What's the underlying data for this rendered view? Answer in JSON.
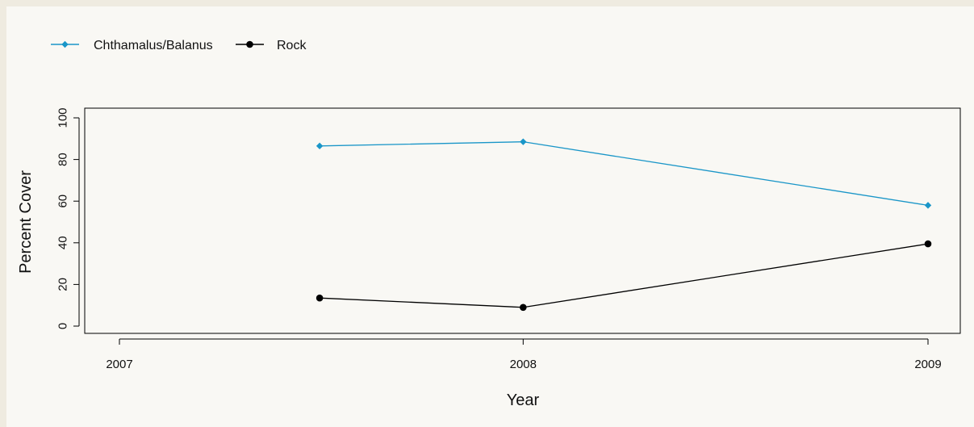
{
  "chart_data": {
    "type": "line",
    "title": "",
    "xlabel": "Year",
    "ylabel": "Percent Cover",
    "xlim": [
      "2007-01-01",
      "2009-01-01"
    ],
    "x_ticks": [
      {
        "value": "2007-01-01",
        "label": "2007"
      },
      {
        "value": "2008-01-01",
        "label": "2008"
      },
      {
        "value": "2009-01-01",
        "label": "2009"
      }
    ],
    "ylim": [
      0,
      100
    ],
    "y_ticks": [
      0,
      20,
      40,
      60,
      80,
      100
    ],
    "grid": false,
    "legend_position": "top-left",
    "series": [
      {
        "name": "Chthamalus/Balanus",
        "color": "#1a96c8",
        "marker": "diamond",
        "points": [
          {
            "x": "2007-07-01",
            "y": 86.5
          },
          {
            "x": "2008-01-01",
            "y": 88.5
          },
          {
            "x": "2009-01-01",
            "y": 58
          }
        ]
      },
      {
        "name": "Rock",
        "color": "#000000",
        "marker": "circle",
        "points": [
          {
            "x": "2007-07-01",
            "y": 13.5
          },
          {
            "x": "2008-01-01",
            "y": 9
          },
          {
            "x": "2009-01-01",
            "y": 39.5
          }
        ]
      }
    ]
  }
}
